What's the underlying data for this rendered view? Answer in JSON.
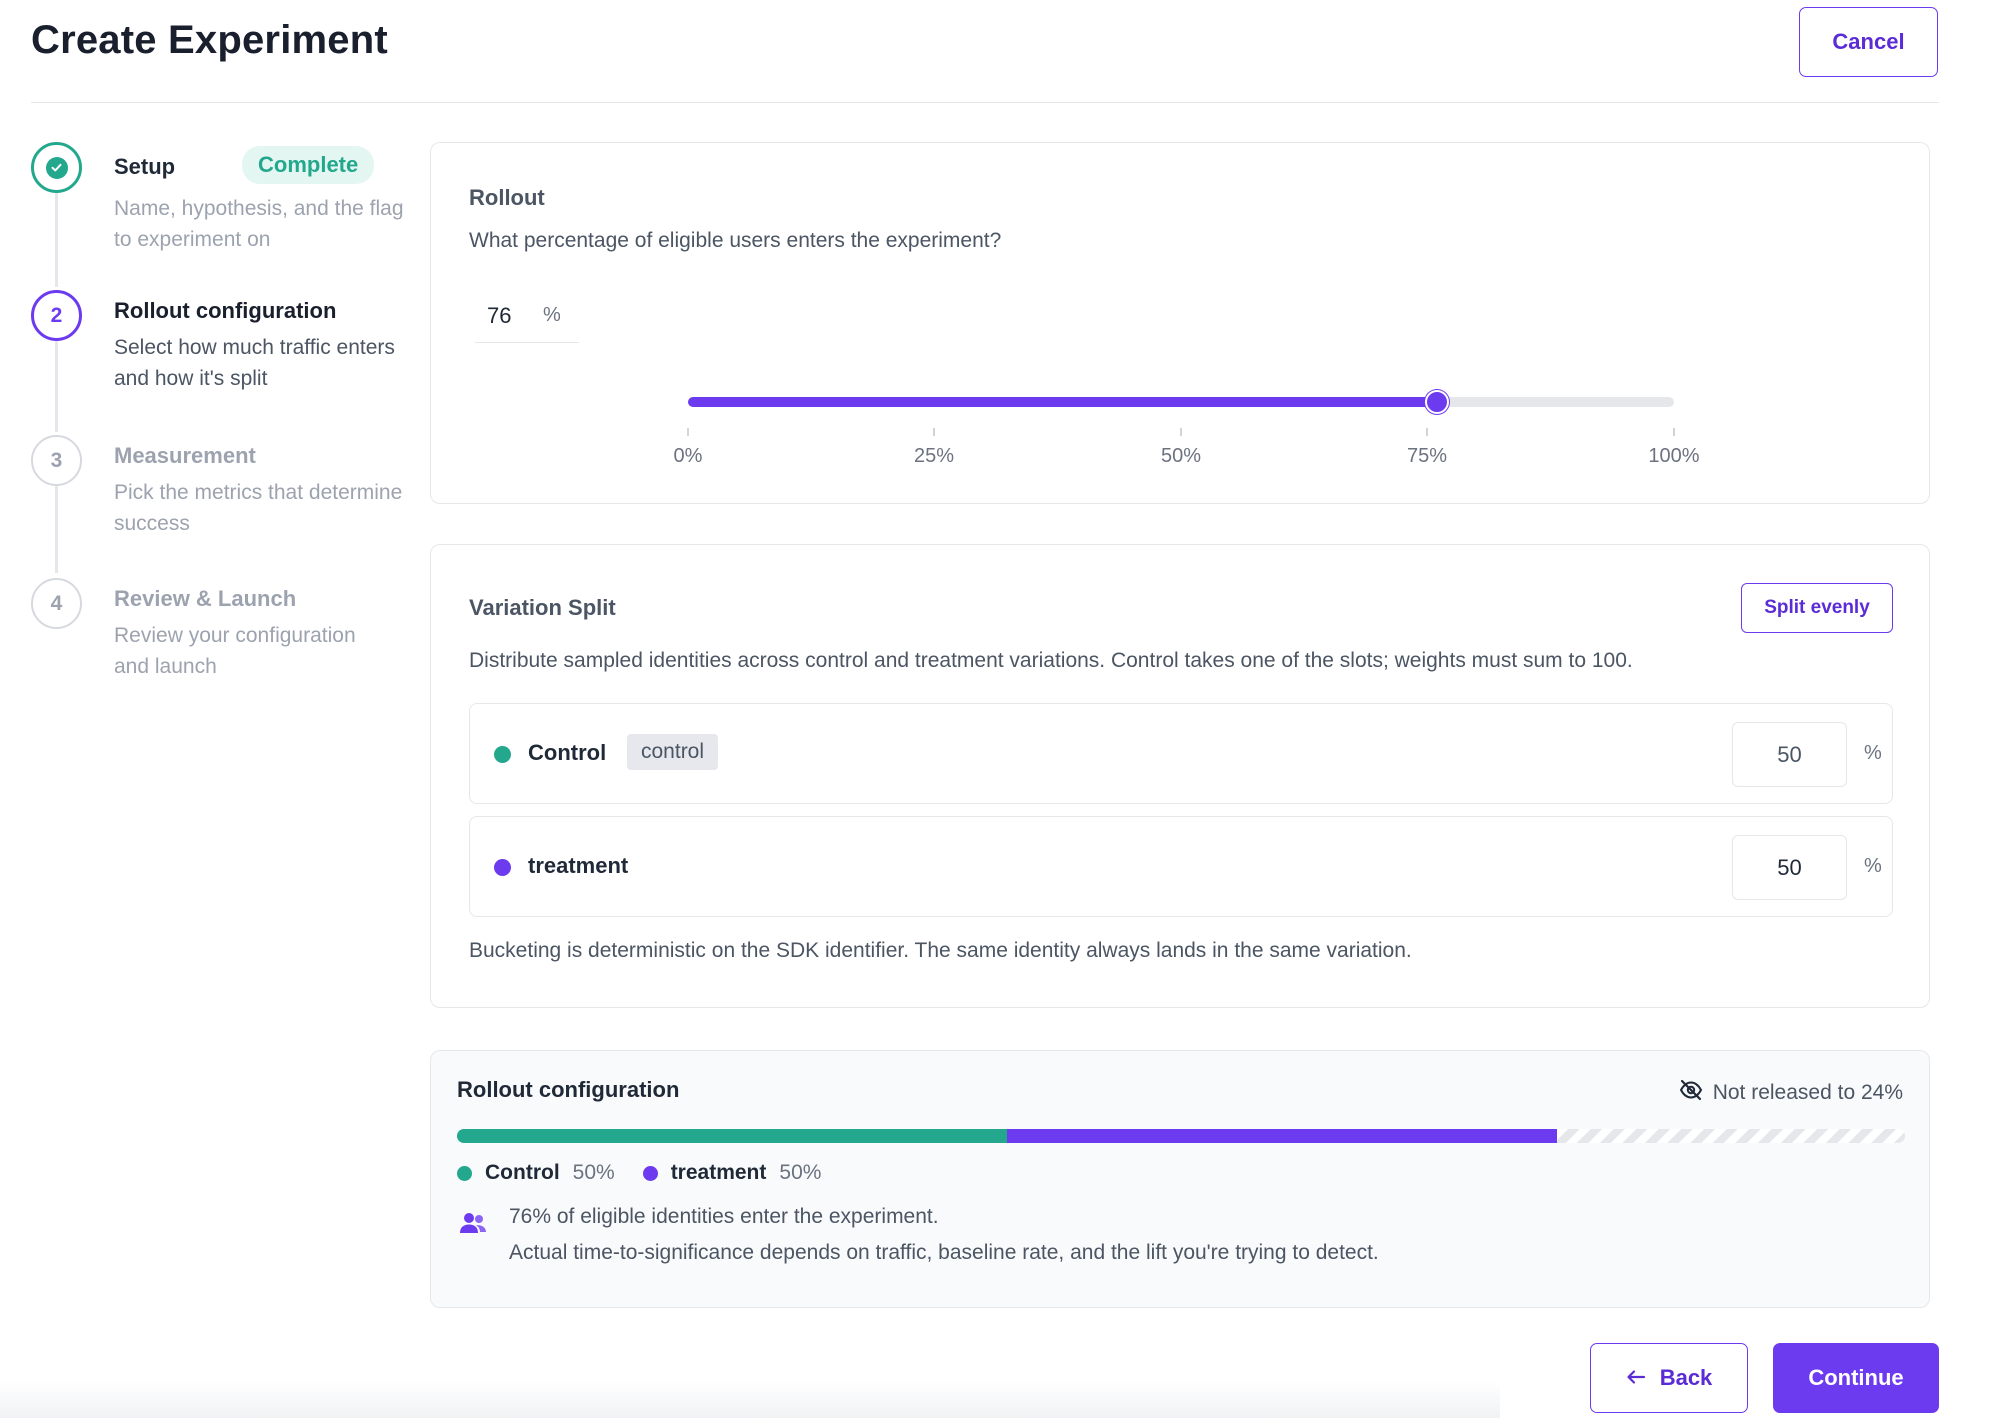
{
  "header": {
    "title": "Create Experiment",
    "cancel_label": "Cancel"
  },
  "stepper": {
    "steps": [
      {
        "number": "1",
        "title": "Setup",
        "description": "Name, hypothesis, and the flag to experiment on",
        "state": "complete",
        "badge": "Complete"
      },
      {
        "number": "2",
        "title": "Rollout configuration",
        "description": "Select how much traffic enters and how it's split",
        "state": "active"
      },
      {
        "number": "3",
        "title": "Measurement",
        "description": "Pick the metrics that determine success",
        "state": "upcoming"
      },
      {
        "number": "4",
        "title": "Review & Launch",
        "description": "Review your configuration and launch",
        "state": "upcoming"
      }
    ]
  },
  "rollout": {
    "title": "Rollout",
    "question": "What percentage of eligible users enters the experiment?",
    "value": "76",
    "unit": "%",
    "slider_value": 76,
    "slider_min": 0,
    "slider_max": 100,
    "tick_labels": [
      "0%",
      "25%",
      "50%",
      "75%",
      "100%"
    ]
  },
  "variation_split": {
    "title": "Variation Split",
    "split_evenly_label": "Split evenly",
    "description": "Distribute sampled identities across control and treatment variations. Control takes one of the slots; weights must sum to 100.",
    "variations": [
      {
        "name": "Control",
        "tag": "control",
        "weight": "50",
        "unit": "%",
        "color": "#23a88e"
      },
      {
        "name": "treatment",
        "weight": "50",
        "unit": "%",
        "color": "#6d3bef"
      }
    ],
    "footnote": "Bucketing is deterministic on the SDK identifier. The same identity always lands in the same variation."
  },
  "summary": {
    "title": "Rollout configuration",
    "not_released": "Not released to 24%",
    "legend": [
      {
        "name": "Control",
        "pct": "50%"
      },
      {
        "name": "treatment",
        "pct": "50%"
      }
    ],
    "line1": "76% of eligible identities enter the experiment.",
    "line2": "Actual time-to-significance depends on traffic, baseline rate, and the lift you're trying to detect."
  },
  "footer": {
    "back_label": "Back",
    "continue_label": "Continue"
  },
  "colors": {
    "accent": "#6d3bef",
    "success": "#23a88e",
    "control": "#23a88e",
    "treatment": "#6d3bef"
  },
  "icons": {
    "step1": "check-icon",
    "not_released": "eye-off-icon",
    "info": "users-icon",
    "back": "arrow-left-icon"
  }
}
